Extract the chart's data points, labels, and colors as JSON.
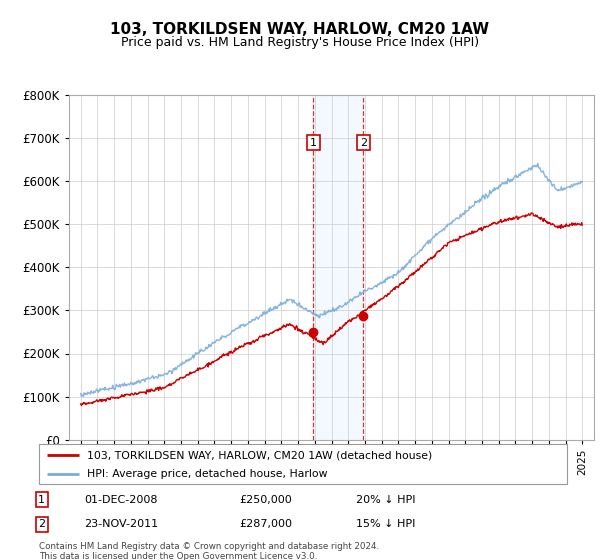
{
  "title": "103, TORKILDSEN WAY, HARLOW, CM20 1AW",
  "subtitle": "Price paid vs. HM Land Registry's House Price Index (HPI)",
  "ylim": [
    0,
    800000
  ],
  "yticks": [
    0,
    100000,
    200000,
    300000,
    400000,
    500000,
    600000,
    700000,
    800000
  ],
  "legend_line1": "103, TORKILDSEN WAY, HARLOW, CM20 1AW (detached house)",
  "legend_line2": "HPI: Average price, detached house, Harlow",
  "transaction1_date": "01-DEC-2008",
  "transaction1_price": "£250,000",
  "transaction1_hpi": "20% ↓ HPI",
  "transaction2_date": "23-NOV-2011",
  "transaction2_price": "£287,000",
  "transaction2_hpi": "15% ↓ HPI",
  "footer": "Contains HM Land Registry data © Crown copyright and database right 2024.\nThis data is licensed under the Open Government Licence v3.0.",
  "line_color_red": "#cc0000",
  "line_color_blue": "#7aaddb",
  "shade_color": "#ddeeff",
  "point1_x": 2008.917,
  "point1_y": 250000,
  "point2_x": 2011.9,
  "point2_y": 287000,
  "shade_x1": 2008.917,
  "shade_x2": 2011.9,
  "xlim_left": 1994.3,
  "xlim_right": 2025.7
}
